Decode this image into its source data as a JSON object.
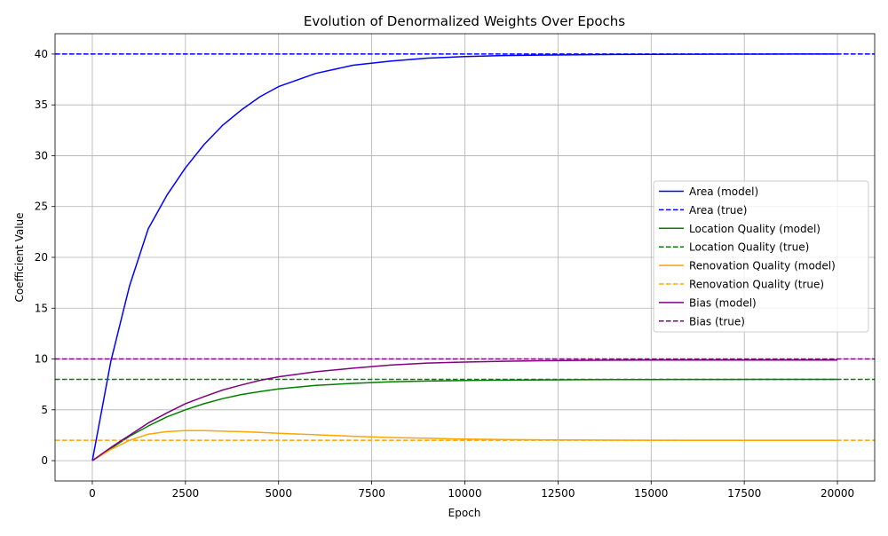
{
  "chart_data": {
    "type": "line",
    "title": "Evolution of Denormalized Weights Over Epochs",
    "xlabel": "Epoch",
    "ylabel": "Coefficient Value",
    "xlim": [
      -1000,
      21000
    ],
    "ylim": [
      -2,
      42
    ],
    "xticks": [
      0,
      2500,
      5000,
      7500,
      10000,
      12500,
      15000,
      17500,
      20000
    ],
    "yticks": [
      0,
      5,
      10,
      15,
      20,
      25,
      30,
      35,
      40
    ],
    "grid": true,
    "legend_position": "center-right",
    "x": [
      0,
      500,
      1000,
      1500,
      2000,
      2500,
      3000,
      3500,
      4000,
      4500,
      5000,
      6000,
      7000,
      8000,
      9000,
      10000,
      11000,
      12000,
      13000,
      14000,
      15000,
      16000,
      17000,
      18000,
      19000,
      20000
    ],
    "series": [
      {
        "name": "Area (model)",
        "color": "#0000ff",
        "style": "solid",
        "values": [
          0,
          9.8,
          17.2,
          22.8,
          26.1,
          28.8,
          31.1,
          33.0,
          34.5,
          35.8,
          36.8,
          38.1,
          38.9,
          39.3,
          39.6,
          39.75,
          39.85,
          39.9,
          39.93,
          39.96,
          39.97,
          39.98,
          39.99,
          39.99,
          40.0,
          40.0
        ]
      },
      {
        "name": "Area (true)",
        "color": "#0000ff",
        "style": "dashed",
        "constant": 40
      },
      {
        "name": "Location Quality (model)",
        "color": "#008000",
        "style": "solid",
        "values": [
          0,
          1.2,
          2.4,
          3.4,
          4.3,
          5.0,
          5.6,
          6.1,
          6.5,
          6.8,
          7.05,
          7.4,
          7.6,
          7.75,
          7.83,
          7.88,
          7.92,
          7.94,
          7.96,
          7.97,
          7.98,
          7.99,
          7.99,
          8.0,
          8.0,
          8.0
        ]
      },
      {
        "name": "Location Quality (true)",
        "color": "#008000",
        "style": "dashed",
        "constant": 8
      },
      {
        "name": "Renovation Quality (model)",
        "color": "#ffa500",
        "style": "solid",
        "values": [
          0,
          1.1,
          2.0,
          2.6,
          2.85,
          2.95,
          2.95,
          2.9,
          2.85,
          2.78,
          2.7,
          2.55,
          2.4,
          2.28,
          2.2,
          2.12,
          2.08,
          2.05,
          2.03,
          2.02,
          2.01,
          2.0,
          2.0,
          2.0,
          2.0,
          2.0
        ]
      },
      {
        "name": "Renovation Quality (true)",
        "color": "#ffa500",
        "style": "dashed",
        "constant": 2
      },
      {
        "name": "Bias (model)",
        "color": "#800080",
        "style": "solid",
        "values": [
          0,
          1.3,
          2.5,
          3.7,
          4.7,
          5.6,
          6.3,
          6.95,
          7.45,
          7.9,
          8.25,
          8.75,
          9.1,
          9.4,
          9.6,
          9.7,
          9.78,
          9.83,
          9.86,
          9.88,
          9.9,
          9.9,
          9.9,
          9.9,
          9.9,
          9.9
        ]
      },
      {
        "name": "Bias (true)",
        "color": "#800080",
        "style": "dashed",
        "constant": 10
      }
    ]
  }
}
